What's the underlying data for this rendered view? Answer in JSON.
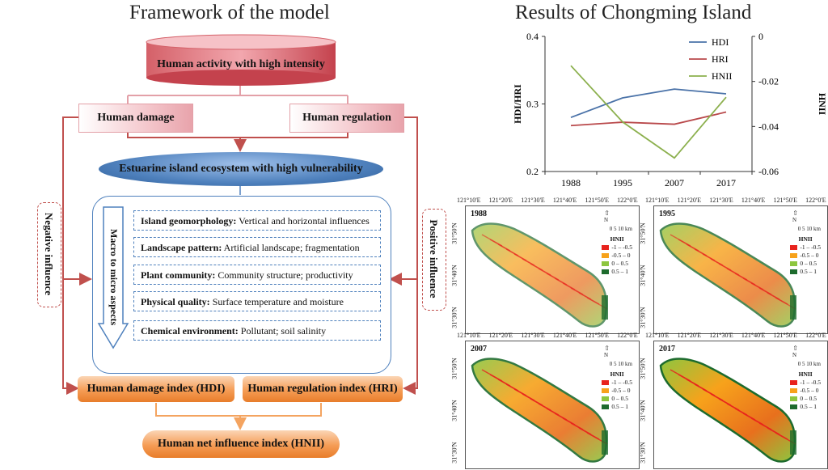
{
  "left_title": "Framework of the model",
  "right_title": "Results of Chongming Island",
  "framework": {
    "top_box": "Human activity with high intensity",
    "human_damage": "Human damage",
    "human_regulation": "Human regulation",
    "ecosystem": "Estuarine island ecosystem with high vulnerability",
    "negative": "Negative influence",
    "positive": "Positive influence",
    "macro_label": "Macro to micro aspects",
    "aspects": [
      {
        "bold": "Island geomorphology:",
        "text": " Vertical and horizontal influences"
      },
      {
        "bold": "Landscape pattern:",
        "text": " Artificial landscape; fragmentation"
      },
      {
        "bold": "Plant community:",
        "text": " Community structure; productivity"
      },
      {
        "bold": "Physical quality:",
        "text": " Surface temperature and moisture"
      },
      {
        "bold": "Chemical environment:",
        "text": " Pollutant; soil salinity"
      }
    ],
    "hdi_box": "Human damage index (HDI)",
    "hri_box": "Human regulation index (HRI)",
    "hnii_box": "Human net influence index (HNII)"
  },
  "chart_data": {
    "type": "line",
    "categories": [
      "1988",
      "1995",
      "2007",
      "2017"
    ],
    "series": [
      {
        "name": "HDI",
        "axis": "left",
        "color": "#4a72a8",
        "values": [
          0.28,
          0.309,
          0.322,
          0.315
        ]
      },
      {
        "name": "HRI",
        "axis": "left",
        "color": "#b9494b",
        "values": [
          0.268,
          0.273,
          0.27,
          0.288
        ]
      },
      {
        "name": "HNII",
        "axis": "right",
        "color": "#8cb04e",
        "values": [
          -0.013,
          -0.038,
          -0.054,
          -0.027
        ]
      }
    ],
    "ylabel_left": "HDI/HRI",
    "ylabel_right": "HNII",
    "ylim_left": [
      0.2,
      0.4
    ],
    "ylim_right": [
      -0.06,
      0
    ],
    "yticks_left": [
      "0.2",
      "0.3",
      "0.4"
    ],
    "yticks_right": [
      "-0.06",
      "-0.04",
      "-0.02",
      "0"
    ],
    "legend": "top-right",
    "grid": false
  },
  "maps": {
    "lon_ticks": [
      "121°10'E",
      "121°20'E",
      "121°30'E",
      "121°40'E",
      "121°50'E",
      "122°0'E"
    ],
    "lat_ticks": [
      "31°50'N",
      "31°40'N",
      "31°30'N"
    ],
    "scale": [
      "0",
      "5",
      "10"
    ],
    "scale_unit": "km",
    "north": "N",
    "legend_title": "HNII",
    "legend_items": [
      {
        "label": "-1 – -0.5",
        "color": "#e8231d"
      },
      {
        "label": "-0.5 – 0",
        "color": "#f7a21b"
      },
      {
        "label": "0 – 0.5",
        "color": "#8dc63f"
      },
      {
        "label": "0.5 – 1",
        "color": "#1d6b2d"
      }
    ],
    "panels": [
      {
        "year": "1988"
      },
      {
        "year": "1995"
      },
      {
        "year": "2007"
      },
      {
        "year": "2017"
      }
    ]
  }
}
